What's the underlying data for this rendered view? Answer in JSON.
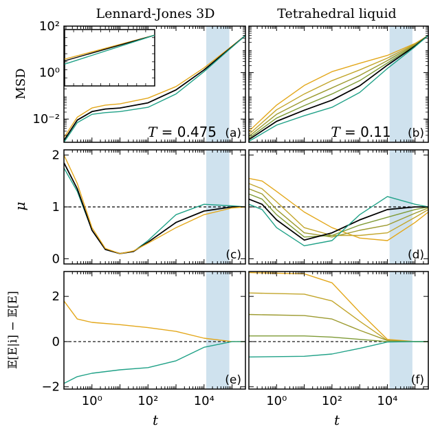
{
  "chart_data": {
    "type": "line",
    "column_titles": [
      "Lennard-Jones 3D",
      "Tetrahedral liquid"
    ],
    "row_labels": [
      "MSD",
      "μ",
      "𝔼[E|i] − 𝔼[E]"
    ],
    "xlabel": "t",
    "x_scale": "log",
    "xlim": [
      0.1,
      300000
    ],
    "x_tick_labels": [
      "10⁰",
      "10²",
      "10⁴"
    ],
    "x_tick_values": [
      1,
      100,
      10000
    ],
    "shaded_region": [
      12000,
      80000
    ],
    "colors": {
      "shade": "#cfe2ee",
      "black": "#000000",
      "teal": "#1fa187",
      "orange": "#e3a71a",
      "olive_1": "#c2a52a",
      "olive_2": "#9c9a2f",
      "olive_3": "#7e9a35"
    },
    "rows": [
      {
        "ylabel": "MSD",
        "y_scale": "log",
        "ylim": [
          0.001,
          100
        ],
        "y_tick_labels": [
          "10⁻²",
          "10⁰",
          "10²"
        ],
        "y_tick_values": [
          0.01,
          1,
          100
        ]
      },
      {
        "ylabel": "μ",
        "y_scale": "linear",
        "ylim": [
          -0.1,
          2.1
        ],
        "y_tick_labels": [
          "0",
          "1",
          "2"
        ],
        "y_tick_values": [
          0,
          1,
          2
        ],
        "reference_line": 1
      },
      {
        "ylabel": "𝔼[E|i] − 𝔼[E]",
        "y_scale": "linear",
        "ylim": [
          -2.1,
          3.1
        ],
        "y_tick_labels": [
          "−2",
          "0",
          "2"
        ],
        "y_tick_values": [
          -2,
          0,
          2
        ],
        "reference_line": 0
      }
    ],
    "panels": [
      {
        "label": "(a)",
        "row": 0,
        "col": 0,
        "annotation": "T = 0.475",
        "series": [
          {
            "color": "orange",
            "x": [
              0.1,
              0.3,
              1,
              3,
              10,
              100,
              1000,
              10000,
              100000,
              300000
            ],
            "y": [
              0.0016,
              0.012,
              0.03,
              0.04,
              0.045,
              0.08,
              0.25,
              1.6,
              14,
              40
            ]
          },
          {
            "color": "black",
            "x": [
              0.1,
              0.3,
              1,
              3,
              10,
              100,
              1000,
              10000,
              100000,
              300000
            ],
            "y": [
              0.0012,
              0.009,
              0.021,
              0.027,
              0.03,
              0.05,
              0.18,
              1.3,
              13,
              40
            ]
          },
          {
            "color": "teal",
            "x": [
              0.1,
              0.3,
              1,
              3,
              10,
              100,
              1000,
              10000,
              100000,
              300000
            ],
            "y": [
              0.001,
              0.007,
              0.016,
              0.019,
              0.021,
              0.032,
              0.12,
              1.1,
              12.5,
              40
            ]
          }
        ],
        "inset": {
          "x_scale": "log",
          "y_scale": "log",
          "series": [
            {
              "color": "orange",
              "x": [
                0.1,
                300000
              ],
              "y": [
                0.8,
                40
              ]
            },
            {
              "color": "black",
              "x": [
                0.1,
                300000
              ],
              "y": [
                0.6,
                40
              ]
            },
            {
              "color": "teal",
              "x": [
                0.1,
                300000
              ],
              "y": [
                0.35,
                40
              ]
            }
          ]
        }
      },
      {
        "label": "(b)",
        "row": 0,
        "col": 1,
        "annotation": "T = 0.11",
        "series": [
          {
            "color": "orange",
            "x": [
              0.1,
              1,
              10,
              100,
              1000,
              10000,
              100000,
              300000
            ],
            "y": [
              0.003,
              0.04,
              0.28,
              1.1,
              2.5,
              5.5,
              18,
              40
            ]
          },
          {
            "color": "olive_1",
            "x": [
              0.1,
              1,
              10,
              100,
              1000,
              10000,
              100000,
              300000
            ],
            "y": [
              0.0022,
              0.025,
              0.12,
              0.45,
              1.3,
              4.2,
              17,
              40
            ]
          },
          {
            "color": "olive_2",
            "x": [
              0.1,
              1,
              10,
              100,
              1000,
              10000,
              100000,
              300000
            ],
            "y": [
              0.0018,
              0.016,
              0.065,
              0.22,
              0.75,
              3.3,
              16,
              40
            ]
          },
          {
            "color": "olive_3",
            "x": [
              0.1,
              1,
              10,
              100,
              1000,
              10000,
              100000,
              300000
            ],
            "y": [
              0.0015,
              0.011,
              0.038,
              0.12,
              0.45,
              2.6,
              15,
              40
            ]
          },
          {
            "color": "black",
            "x": [
              0.1,
              1,
              10,
              100,
              1000,
              10000,
              100000,
              300000
            ],
            "y": [
              0.0013,
              0.008,
              0.024,
              0.065,
              0.27,
              2.1,
              14,
              40
            ]
          },
          {
            "color": "teal",
            "x": [
              0.1,
              1,
              10,
              100,
              1000,
              10000,
              100000,
              300000
            ],
            "y": [
              0.0011,
              0.0055,
              0.014,
              0.032,
              0.14,
              1.5,
              13,
              40
            ]
          }
        ]
      },
      {
        "label": "(c)",
        "row": 1,
        "col": 0,
        "series": [
          {
            "color": "teal",
            "x": [
              0.1,
              0.3,
              1,
              3,
              10,
              30,
              100,
              1000,
              10000,
              100000,
              300000
            ],
            "y": [
              1.75,
              1.3,
              0.55,
              0.18,
              0.1,
              0.14,
              0.35,
              0.85,
              1.05,
              1.02,
              1.0
            ]
          },
          {
            "color": "black",
            "x": [
              0.1,
              0.3,
              1,
              3,
              10,
              30,
              100,
              1000,
              10000,
              100000,
              300000
            ],
            "y": [
              1.85,
              1.35,
              0.55,
              0.18,
              0.1,
              0.14,
              0.32,
              0.7,
              0.92,
              1.0,
              1.0
            ]
          },
          {
            "color": "orange",
            "x": [
              0.1,
              0.3,
              1,
              3,
              10,
              30,
              100,
              1000,
              10000,
              100000,
              300000
            ],
            "y": [
              2.0,
              1.45,
              0.6,
              0.2,
              0.1,
              0.15,
              0.3,
              0.6,
              0.85,
              0.98,
              1.0
            ]
          }
        ]
      },
      {
        "label": "(d)",
        "row": 1,
        "col": 1,
        "series": [
          {
            "color": "orange",
            "x": [
              0.1,
              0.3,
              1,
              10,
              100,
              1000,
              10000,
              100000,
              300000
            ],
            "y": [
              1.55,
              1.5,
              1.3,
              0.9,
              0.6,
              0.4,
              0.35,
              0.7,
              0.9
            ]
          },
          {
            "color": "olive_1",
            "x": [
              0.1,
              0.3,
              1,
              10,
              100,
              1000,
              10000,
              100000,
              300000
            ],
            "y": [
              1.45,
              1.35,
              1.1,
              0.6,
              0.45,
              0.45,
              0.5,
              0.8,
              0.95
            ]
          },
          {
            "color": "olive_2",
            "x": [
              0.1,
              0.3,
              1,
              10,
              100,
              1000,
              10000,
              100000,
              300000
            ],
            "y": [
              1.35,
              1.25,
              0.95,
              0.5,
              0.42,
              0.55,
              0.65,
              0.88,
              0.98
            ]
          },
          {
            "color": "olive_3",
            "x": [
              0.1,
              0.3,
              1,
              10,
              100,
              1000,
              10000,
              100000,
              300000
            ],
            "y": [
              1.25,
              1.15,
              0.85,
              0.42,
              0.45,
              0.65,
              0.8,
              0.95,
              1.0
            ]
          },
          {
            "color": "black",
            "x": [
              0.1,
              0.3,
              1,
              10,
              100,
              1000,
              10000,
              100000,
              300000
            ],
            "y": [
              1.15,
              1.05,
              0.75,
              0.36,
              0.5,
              0.75,
              0.95,
              1.0,
              1.0
            ]
          },
          {
            "color": "teal",
            "x": [
              0.1,
              0.3,
              1,
              10,
              100,
              1000,
              10000,
              100000,
              300000
            ],
            "y": [
              1.05,
              0.95,
              0.6,
              0.25,
              0.35,
              0.85,
              1.2,
              1.05,
              1.0
            ]
          }
        ]
      },
      {
        "label": "(e)",
        "row": 2,
        "col": 0,
        "series": [
          {
            "color": "orange",
            "x": [
              0.1,
              0.3,
              1,
              10,
              100,
              1000,
              10000,
              100000,
              300000
            ],
            "y": [
              1.8,
              1.0,
              0.85,
              0.75,
              0.62,
              0.45,
              0.15,
              0.0,
              0.0
            ]
          },
          {
            "color": "teal",
            "x": [
              0.1,
              0.3,
              1,
              10,
              100,
              1000,
              10000,
              100000,
              300000
            ],
            "y": [
              -1.85,
              -1.55,
              -1.4,
              -1.25,
              -1.15,
              -0.85,
              -0.25,
              0.0,
              0.0
            ]
          }
        ]
      },
      {
        "label": "(f)",
        "row": 2,
        "col": 1,
        "series": [
          {
            "color": "orange",
            "x": [
              0.1,
              10,
              100,
              1000,
              10000,
              100000,
              300000
            ],
            "y": [
              3.05,
              3.0,
              2.6,
              1.3,
              0.1,
              0.0,
              0.0
            ]
          },
          {
            "color": "olive_1",
            "x": [
              0.1,
              10,
              100,
              1000,
              10000,
              100000,
              300000
            ],
            "y": [
              2.15,
              2.1,
              1.8,
              0.9,
              0.05,
              0.0,
              0.0
            ]
          },
          {
            "color": "olive_2",
            "x": [
              0.1,
              10,
              100,
              1000,
              10000,
              100000,
              300000
            ],
            "y": [
              1.2,
              1.15,
              1.0,
              0.5,
              0.05,
              0.0,
              0.0
            ]
          },
          {
            "color": "olive_3",
            "x": [
              0.1,
              10,
              100,
              1000,
              10000,
              100000,
              300000
            ],
            "y": [
              0.25,
              0.25,
              0.2,
              0.1,
              0.0,
              0.0,
              0.0
            ]
          },
          {
            "color": "teal",
            "x": [
              0.1,
              10,
              100,
              1000,
              10000,
              100000,
              300000
            ],
            "y": [
              -0.68,
              -0.65,
              -0.55,
              -0.3,
              -0.02,
              0.0,
              0.0
            ]
          }
        ]
      }
    ]
  }
}
